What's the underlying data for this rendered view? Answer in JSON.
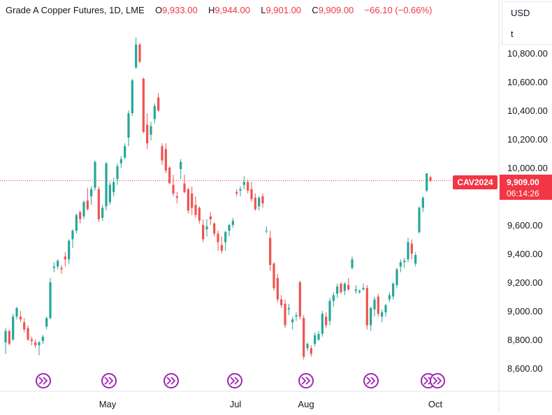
{
  "header": {
    "symbol": "Grade A Copper Futures, 1D, LME",
    "o_label": "O",
    "o_value": "9,933.00",
    "h_label": "H",
    "h_value": "9,944.00",
    "l_label": "L",
    "l_value": "9,901.00",
    "c_label": "C",
    "c_value": "9,909.00",
    "change": "−66.10 (−0.66%)"
  },
  "currency": {
    "code": "USD",
    "unit": "t"
  },
  "price_badge": {
    "symbol": "CAV2024",
    "price": "9,909.00",
    "countdown": "06:14:26"
  },
  "colors": {
    "up": "#26a69a",
    "down": "#ef5350",
    "event": "#9c27b0",
    "badge": "#f23645"
  },
  "chart_data": {
    "type": "candlestick",
    "y_axis": {
      "ticks": [
        "8,600.00",
        "8,800.00",
        "9,000.00",
        "9,200.00",
        "9,400.00",
        "9,600.00",
        "10,000.00",
        "10,200.00",
        "10,400.00",
        "10,600.00",
        "10,800.00"
      ],
      "range": [
        8500,
        10900
      ]
    },
    "x_axis": {
      "ticks": [
        "May",
        "Jul",
        "Aug",
        "Oct"
      ]
    },
    "last_price": 9909,
    "event_markers_count": 8,
    "ohlc": [
      [
        8780,
        8880,
        8700,
        8860
      ],
      [
        8860,
        8870,
        8760,
        8770
      ],
      [
        8800,
        8980,
        8790,
        8960
      ],
      [
        8960,
        9030,
        8940,
        9020
      ],
      [
        8960,
        9000,
        8920,
        8940
      ],
      [
        8920,
        8950,
        8850,
        8870
      ],
      [
        8880,
        8900,
        8790,
        8800
      ],
      [
        8800,
        8820,
        8760,
        8790
      ],
      [
        8780,
        8800,
        8740,
        8760
      ],
      [
        8760,
        8790,
        8690,
        8780
      ],
      [
        8790,
        8830,
        8770,
        8820
      ],
      [
        8890,
        8960,
        8870,
        8950
      ],
      [
        8950,
        9230,
        8940,
        9200
      ],
      [
        9300,
        9340,
        9270,
        9310
      ],
      [
        9310,
        9360,
        9290,
        9350
      ],
      [
        9300,
        9320,
        9260,
        9290
      ],
      [
        9380,
        9410,
        9310,
        9360
      ],
      [
        9360,
        9500,
        9330,
        9490
      ],
      [
        9500,
        9570,
        9440,
        9560
      ],
      [
        9560,
        9680,
        9540,
        9670
      ],
      [
        9690,
        9700,
        9610,
        9640
      ],
      [
        9660,
        9770,
        9640,
        9760
      ],
      [
        9770,
        9860,
        9700,
        9710
      ],
      [
        9800,
        9870,
        9740,
        9850
      ],
      [
        9860,
        10050,
        9840,
        10040
      ],
      [
        9850,
        9870,
        9620,
        9640
      ],
      [
        9650,
        9740,
        9630,
        9720
      ],
      [
        9730,
        10040,
        9700,
        10030
      ],
      [
        9760,
        9900,
        9740,
        9880
      ],
      [
        9830,
        9930,
        9800,
        9900
      ],
      [
        9920,
        10030,
        9880,
        10010
      ],
      [
        10030,
        10080,
        10000,
        10060
      ],
      [
        10070,
        10170,
        10060,
        10150
      ],
      [
        10210,
        10400,
        10150,
        10380
      ],
      [
        10380,
        10620,
        10360,
        10610
      ],
      [
        10700,
        10910,
        10690,
        10860
      ],
      [
        10860,
        10870,
        10730,
        10740
      ],
      [
        10620,
        10630,
        10240,
        10250
      ],
      [
        10300,
        10380,
        10130,
        10170
      ],
      [
        10230,
        10320,
        10190,
        10290
      ],
      [
        10340,
        10450,
        10310,
        10430
      ],
      [
        10490,
        10520,
        10390,
        10400
      ],
      [
        10150,
        10170,
        10020,
        10050
      ],
      [
        10130,
        10170,
        9960,
        9980
      ],
      [
        10000,
        10010,
        9890,
        9890
      ],
      [
        9880,
        9950,
        9800,
        9820
      ],
      [
        9800,
        9830,
        9750,
        9790
      ],
      [
        9990,
        10060,
        9920,
        10040
      ],
      [
        9890,
        9950,
        9820,
        9830
      ],
      [
        9850,
        9860,
        9680,
        9700
      ],
      [
        9820,
        9870,
        9670,
        9720
      ],
      [
        9740,
        9800,
        9650,
        9670
      ],
      [
        9720,
        9730,
        9610,
        9630
      ],
      [
        9600,
        9640,
        9480,
        9500
      ],
      [
        9570,
        9640,
        9520,
        9590
      ],
      [
        9660,
        9690,
        9600,
        9640
      ],
      [
        9610,
        9620,
        9520,
        9540
      ],
      [
        9540,
        9560,
        9420,
        9480
      ],
      [
        9460,
        9520,
        9400,
        9420
      ],
      [
        9480,
        9560,
        9420,
        9550
      ],
      [
        9560,
        9610,
        9520,
        9600
      ],
      [
        9600,
        9650,
        9580,
        9630
      ],
      [
        9830,
        9850,
        9800,
        9820
      ],
      [
        9840,
        9870,
        9800,
        9850
      ],
      [
        9880,
        9940,
        9850,
        9900
      ],
      [
        9900,
        9920,
        9820,
        9840
      ],
      [
        9850,
        9900,
        9760,
        9780
      ],
      [
        9790,
        9820,
        9700,
        9710
      ],
      [
        9730,
        9800,
        9700,
        9790
      ],
      [
        9800,
        9820,
        9720,
        9750
      ],
      [
        9560,
        9590,
        9540,
        9560
      ],
      [
        9510,
        9560,
        9280,
        9320
      ],
      [
        9330,
        9340,
        9140,
        9160
      ],
      [
        9230,
        9260,
        9060,
        9080
      ],
      [
        9080,
        9110,
        9020,
        9040
      ],
      [
        9050,
        9080,
        8880,
        8900
      ],
      [
        9010,
        9050,
        8970,
        9020
      ],
      [
        8920,
        8960,
        8870,
        8940
      ],
      [
        8960,
        8990,
        8930,
        8970
      ],
      [
        9200,
        9210,
        8940,
        8960
      ],
      [
        8950,
        8970,
        8660,
        8680
      ],
      [
        8740,
        8780,
        8720,
        8770
      ],
      [
        8740,
        8760,
        8680,
        8700
      ],
      [
        8770,
        8850,
        8750,
        8830
      ],
      [
        8800,
        8860,
        8790,
        8840
      ],
      [
        8840,
        9000,
        8820,
        8980
      ],
      [
        8960,
        8990,
        8880,
        8900
      ],
      [
        8930,
        9090,
        8900,
        9070
      ],
      [
        9070,
        9130,
        9030,
        9110
      ],
      [
        9120,
        9190,
        9090,
        9170
      ],
      [
        9190,
        9200,
        9120,
        9130
      ],
      [
        9140,
        9200,
        9110,
        9190
      ],
      [
        9180,
        9230,
        9140,
        9150
      ],
      [
        9300,
        9380,
        9290,
        9360
      ],
      [
        9140,
        9180,
        9120,
        9150
      ],
      [
        9130,
        9150,
        9120,
        9140
      ],
      [
        9150,
        9190,
        9140,
        9160
      ],
      [
        9160,
        9180,
        8870,
        8900
      ],
      [
        8900,
        9030,
        8860,
        9020
      ],
      [
        9010,
        9100,
        8960,
        9080
      ],
      [
        9100,
        9120,
        8960,
        8980
      ],
      [
        8960,
        9010,
        8920,
        8990
      ],
      [
        8990,
        9050,
        8960,
        9040
      ],
      [
        9080,
        9130,
        9060,
        9110
      ],
      [
        9100,
        9200,
        9080,
        9190
      ],
      [
        9180,
        9300,
        9160,
        9290
      ],
      [
        9310,
        9360,
        9270,
        9340
      ],
      [
        9340,
        9370,
        9300,
        9350
      ],
      [
        9360,
        9510,
        9340,
        9480
      ],
      [
        9470,
        9500,
        9360,
        9400
      ],
      [
        9330,
        9410,
        9310,
        9390
      ],
      [
        9550,
        9730,
        9540,
        9720
      ],
      [
        9720,
        9800,
        9690,
        9790
      ],
      [
        9840,
        9960,
        9830,
        9960
      ],
      [
        9933,
        9944,
        9901,
        9909
      ]
    ]
  }
}
